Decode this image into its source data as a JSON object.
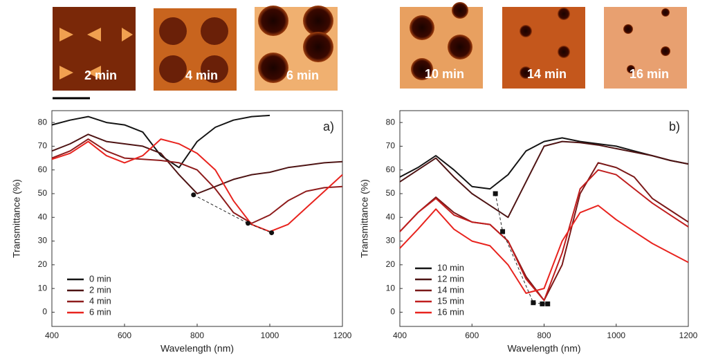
{
  "micrographs": [
    {
      "label": "2 min"
    },
    {
      "label": "4 min"
    },
    {
      "label": "6 min"
    },
    {
      "label": "10 min"
    },
    {
      "label": "14 min"
    },
    {
      "label": "16 min"
    }
  ],
  "chart_data": [
    {
      "type": "line",
      "annotation": "a)",
      "xlabel": "Wavelength (nm)",
      "ylabel": "Transmittance (%)",
      "xlim": [
        400,
        1200
      ],
      "xticks": [
        400,
        600,
        800,
        1000,
        1200
      ],
      "ylim": [
        -6,
        85
      ],
      "yticks": [
        0,
        10,
        20,
        30,
        40,
        50,
        60,
        70,
        80
      ],
      "legend": "lower left",
      "x": [
        400,
        450,
        500,
        550,
        600,
        650,
        700,
        750,
        800,
        850,
        900,
        950,
        1000,
        1050,
        1100,
        1150,
        1200
      ],
      "series": [
        {
          "name": "0 min",
          "color": "#141414",
          "values": [
            79,
            81,
            82.5,
            80,
            79,
            76,
            66,
            61,
            72,
            78,
            81,
            82.5,
            83,
            null,
            null,
            null,
            null
          ]
        },
        {
          "name": "2 min",
          "color": "#4e1414",
          "values": [
            68,
            71,
            75,
            72,
            71,
            70,
            67,
            58,
            50,
            53,
            56,
            58,
            59,
            61,
            62,
            63,
            63.5
          ]
        },
        {
          "name": "4 min",
          "color": "#8e1c1c",
          "values": [
            65,
            68,
            73,
            68,
            65,
            64.5,
            64,
            63,
            60,
            52,
            42,
            37.5,
            41,
            47,
            51,
            52.5,
            53
          ]
        },
        {
          "name": "6 min",
          "color": "#e8231e",
          "values": [
            64.5,
            67,
            72,
            66,
            63,
            66,
            73,
            71,
            67,
            60,
            47,
            37,
            34,
            37,
            44,
            51,
            58
          ]
        }
      ],
      "minima": {
        "marker": "circle",
        "x": [
          790,
          940,
          1005
        ],
        "y": [
          49.5,
          37.5,
          33.5
        ]
      }
    },
    {
      "type": "line",
      "annotation": "b)",
      "xlabel": "Wavelength (nm)",
      "ylabel": "Transmittance (%)",
      "xlim": [
        400,
        1200
      ],
      "xticks": [
        400,
        600,
        800,
        1000,
        1200
      ],
      "ylim": [
        -6,
        85
      ],
      "yticks": [
        0,
        10,
        20,
        30,
        40,
        50,
        60,
        70,
        80
      ],
      "legend": "lower left",
      "x": [
        400,
        450,
        500,
        550,
        600,
        650,
        700,
        750,
        800,
        850,
        900,
        950,
        1000,
        1050,
        1100,
        1150,
        1200
      ],
      "series": [
        {
          "name": "10 min",
          "color": "#141414",
          "values": [
            57,
            61,
            66,
            60,
            53,
            52,
            58,
            68,
            72,
            73.5,
            72,
            71,
            70,
            68,
            66,
            64,
            62.5
          ]
        },
        {
          "name": "12 min",
          "color": "#4e1414",
          "values": [
            55,
            60,
            65,
            57,
            50,
            45,
            40,
            55,
            70,
            72,
            71.5,
            70.5,
            69,
            67.5,
            66,
            64,
            62.5
          ]
        },
        {
          "name": "14 min",
          "color": "#7a1818",
          "values": [
            34,
            42,
            48.5,
            42,
            38,
            37,
            30,
            15,
            5,
            20,
            50,
            63,
            61,
            57,
            48,
            43,
            38
          ]
        },
        {
          "name": "15 min",
          "color": "#c01e1e",
          "values": [
            34,
            42,
            48,
            41,
            38,
            37,
            30,
            14,
            5,
            25,
            52,
            60,
            58,
            52,
            46,
            41,
            36
          ]
        },
        {
          "name": "16 min",
          "color": "#e8231e",
          "values": [
            27,
            35,
            43.5,
            35,
            30,
            28,
            20,
            8,
            10,
            30,
            42,
            45,
            39,
            34,
            29,
            25,
            21
          ]
        }
      ],
      "minima": {
        "marker": "square",
        "x": [
          665,
          685,
          770,
          795,
          810
        ],
        "y": [
          50,
          34,
          4,
          3.5,
          3.5
        ]
      }
    }
  ]
}
